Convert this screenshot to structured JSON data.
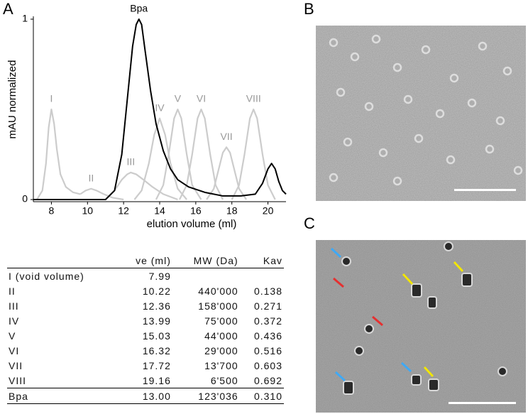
{
  "panels": {
    "a": "A",
    "b": "B",
    "c": "C"
  },
  "chart_data": {
    "type": "line",
    "xlabel": "elution volume (ml)",
    "ylabel": "mAU normalized",
    "xlim": [
      7,
      21
    ],
    "ylim": [
      0,
      1
    ],
    "xticks": [
      8,
      10,
      12,
      14,
      16,
      18,
      20
    ],
    "yticks": [
      0,
      1
    ],
    "series": [
      {
        "label": "I",
        "color": "#cccccc",
        "x": [
          7.2,
          7.5,
          7.7,
          7.85,
          8.0,
          8.15,
          8.3,
          8.5,
          8.8,
          9.2,
          9.6
        ],
        "values": [
          0.0,
          0.05,
          0.2,
          0.4,
          0.5,
          0.42,
          0.28,
          0.14,
          0.07,
          0.04,
          0.03
        ]
      },
      {
        "label": "II",
        "color": "#cccccc",
        "x": [
          9.6,
          9.9,
          10.2,
          10.5,
          10.9,
          11.4,
          12.0
        ],
        "values": [
          0.03,
          0.05,
          0.06,
          0.05,
          0.03,
          0.01,
          0.0
        ]
      },
      {
        "label": "III",
        "color": "#cccccc",
        "x": [
          11.0,
          11.5,
          11.9,
          12.2,
          12.4,
          12.7,
          13.1,
          13.6,
          14.2,
          15.0
        ],
        "values": [
          0.0,
          0.05,
          0.11,
          0.14,
          0.15,
          0.14,
          0.11,
          0.07,
          0.03,
          0.0
        ]
      },
      {
        "label": "IV",
        "color": "#cccccc",
        "x": [
          12.6,
          13.0,
          13.4,
          13.7,
          14.0,
          14.3,
          14.6,
          15.0,
          15.5
        ],
        "values": [
          0.0,
          0.05,
          0.2,
          0.36,
          0.45,
          0.36,
          0.2,
          0.06,
          0.0
        ]
      },
      {
        "label": "V",
        "color": "#cccccc",
        "x": [
          13.8,
          14.2,
          14.5,
          14.8,
          15.0,
          15.2,
          15.5,
          15.8,
          16.3
        ],
        "values": [
          0.0,
          0.08,
          0.25,
          0.45,
          0.5,
          0.45,
          0.25,
          0.08,
          0.0
        ]
      },
      {
        "label": "VI",
        "color": "#cccccc",
        "x": [
          15.1,
          15.5,
          15.8,
          16.1,
          16.3,
          16.5,
          16.8,
          17.1,
          17.5
        ],
        "values": [
          0.0,
          0.08,
          0.25,
          0.45,
          0.5,
          0.45,
          0.25,
          0.08,
          0.0
        ]
      },
      {
        "label": "VII",
        "color": "#cccccc",
        "x": [
          16.6,
          17.0,
          17.3,
          17.5,
          17.7,
          17.9,
          18.1,
          18.4,
          18.8
        ],
        "values": [
          0.0,
          0.06,
          0.18,
          0.26,
          0.29,
          0.26,
          0.18,
          0.06,
          0.0
        ]
      },
      {
        "label": "VIII",
        "color": "#cccccc",
        "x": [
          18.0,
          18.4,
          18.7,
          19.0,
          19.2,
          19.4,
          19.7,
          20.0,
          20.4
        ],
        "values": [
          0.0,
          0.08,
          0.25,
          0.45,
          0.5,
          0.45,
          0.25,
          0.08,
          0.0
        ]
      },
      {
        "label": "Bpa",
        "color": "#000000",
        "x": [
          7.0,
          11.0,
          11.5,
          11.9,
          12.2,
          12.5,
          12.7,
          12.85,
          13.0,
          13.2,
          13.5,
          13.8,
          14.2,
          14.6,
          15.0,
          15.6,
          16.5,
          17.5,
          18.5,
          19.3,
          19.7,
          20.0,
          20.2,
          20.4,
          20.6,
          20.8,
          21.0
        ],
        "values": [
          0.0,
          0.0,
          0.05,
          0.25,
          0.55,
          0.85,
          0.97,
          1.0,
          0.97,
          0.82,
          0.6,
          0.42,
          0.27,
          0.17,
          0.11,
          0.07,
          0.04,
          0.02,
          0.02,
          0.03,
          0.09,
          0.17,
          0.2,
          0.17,
          0.1,
          0.05,
          0.03
        ]
      }
    ]
  },
  "table": {
    "header": [
      "ve (ml)",
      "MW (Da)",
      "Kav"
    ],
    "rows": [
      [
        "I (void volume)",
        "7.99"
      ],
      [
        "II",
        "10.22",
        "440'000",
        "0.138"
      ],
      [
        "III",
        "12.36",
        "158'000",
        "0.271"
      ],
      [
        "IV",
        "13.99",
        "75'000",
        "0.372"
      ],
      [
        "V",
        "15.03",
        "44'000",
        "0.436"
      ],
      [
        "VI",
        "16.32",
        "29'000",
        "0.516"
      ],
      [
        "VII",
        "17.72",
        "13'700",
        "0.603"
      ],
      [
        "VIII",
        "19.16",
        "6'500",
        "0.692"
      ],
      [
        "Bpa",
        "13.00",
        "123'036",
        "0.310"
      ]
    ]
  }
}
